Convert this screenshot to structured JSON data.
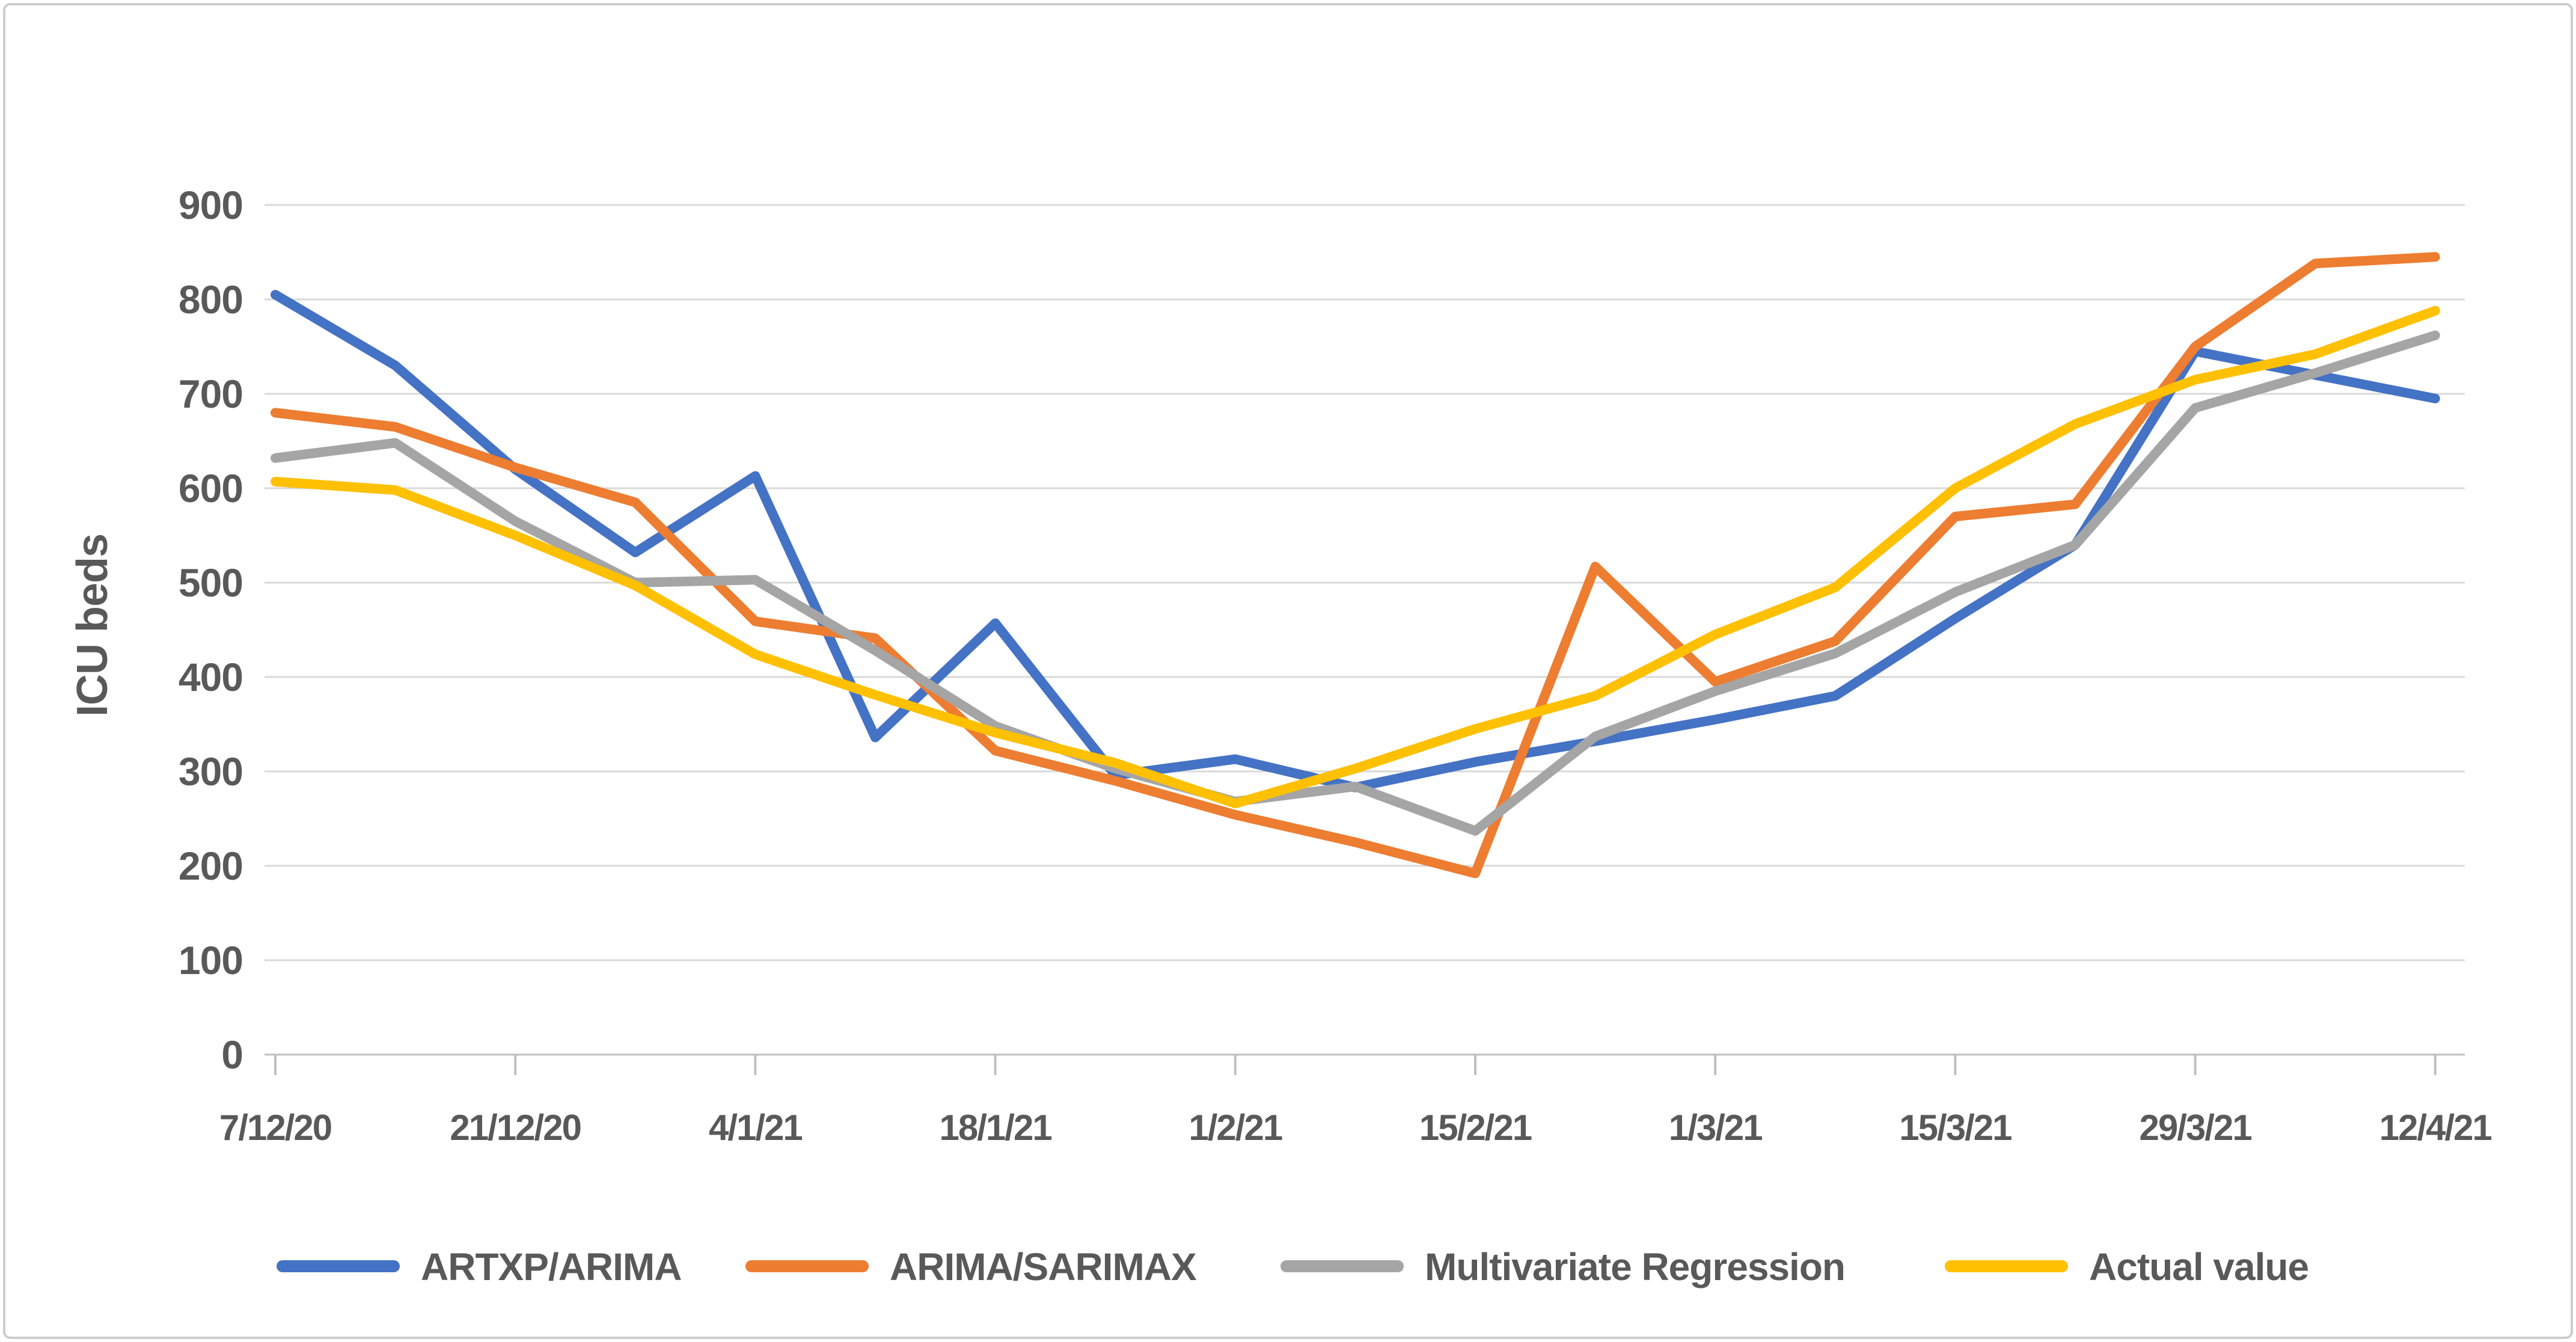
{
  "chart_data": {
    "type": "line",
    "title": "",
    "ylabel": "ICU beds",
    "xlabel": "",
    "ylim": [
      0,
      900
    ],
    "y_tick_step": 100,
    "grid": "horizontal",
    "legend_position": "bottom",
    "categories": [
      "7/12/20",
      "14/12/20",
      "21/12/20",
      "28/12/20",
      "4/1/21",
      "11/1/21",
      "18/1/21",
      "25/1/21",
      "1/2/21",
      "8/2/21",
      "15/2/21",
      "22/2/21",
      "1/3/21",
      "8/3/21",
      "15/3/21",
      "22/3/21",
      "29/3/21",
      "5/4/21",
      "12/4/21"
    ],
    "x_tick_labels": [
      "7/12/20",
      "21/12/20",
      "4/1/21",
      "18/1/21",
      "1/2/21",
      "15/2/21",
      "1/3/21",
      "15/3/21",
      "29/3/21",
      "12/4/21"
    ],
    "y_ticks": [
      "0",
      "100",
      "200",
      "300",
      "400",
      "500",
      "600",
      "700",
      "800",
      "900"
    ],
    "series": [
      {
        "name": "ARTXP/ARIMA",
        "color": "#4472C4",
        "values": [
          805,
          730,
          620,
          532,
          613,
          336,
          457,
          296,
          313,
          283,
          310,
          332,
          355,
          380,
          462,
          540,
          745,
          720,
          695
        ]
      },
      {
        "name": "ARIMA/SARIMAX",
        "color": "#ED7D31",
        "values": [
          680,
          665,
          622,
          585,
          459,
          441,
          322,
          290,
          254,
          225,
          192,
          517,
          395,
          438,
          570,
          583,
          750,
          838,
          845
        ]
      },
      {
        "name": "Multivariate Regression",
        "color": "#A5A5A5",
        "values": [
          632,
          648,
          565,
          500,
          503,
          428,
          348,
          303,
          268,
          284,
          237,
          337,
          385,
          425,
          490,
          540,
          685,
          722,
          762
        ]
      },
      {
        "name": "Actual value",
        "color": "#FFC000",
        "values": [
          607,
          598,
          550,
          497,
          424,
          381,
          341,
          309,
          266,
          303,
          345,
          380,
          445,
          495,
          600,
          668,
          715,
          742,
          788
        ]
      }
    ],
    "style": {
      "text_color": "#595959",
      "gridline_color": "#D9D9D9",
      "axis_color": "#BFBFBF",
      "background": "#FFFFFF",
      "border_color": "#CDCDCD"
    }
  }
}
